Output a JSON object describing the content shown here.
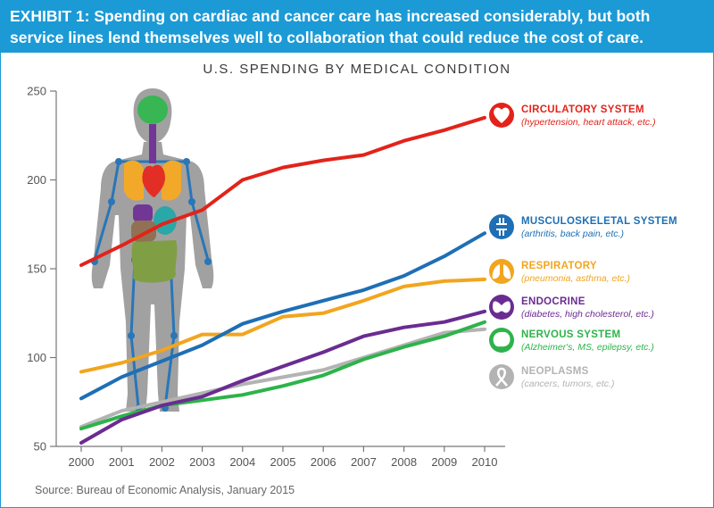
{
  "header": {
    "line1": "EXHIBIT 1: Spending on cardiac and cancer care has increased considerably, but both",
    "line2": "service lines lend themselves well to collaboration that could reduce the cost of care."
  },
  "source": "Source: Bureau of Economic Analysis, January 2015",
  "chart_data": {
    "type": "line",
    "title": "U.S. SPENDING BY MEDICAL CONDITION",
    "xlabel": "",
    "ylabel": "",
    "x": [
      "2000",
      "2001",
      "2002",
      "2003",
      "2004",
      "2005",
      "2006",
      "2007",
      "2008",
      "2009",
      "2010"
    ],
    "ylim": [
      50,
      250
    ],
    "yticks": [
      50,
      100,
      150,
      200,
      250
    ],
    "grid": false,
    "legend_position": "right",
    "series": [
      {
        "name": "CIRCULATORY SYSTEM",
        "description": "(hypertension, heart attack, etc.)",
        "color": "#e2231a",
        "icon": "heart-icon",
        "values": [
          152,
          163,
          175,
          183,
          200,
          207,
          211,
          214,
          222,
          228,
          235
        ]
      },
      {
        "name": "MUSCULOSKELETAL SYSTEM",
        "description": "(arthritis, back pain, etc.)",
        "color": "#1e6fb5",
        "icon": "knee-joint-icon",
        "values": [
          77,
          89,
          98,
          107,
          119,
          126,
          132,
          138,
          146,
          157,
          170
        ]
      },
      {
        "name": "RESPIRATORY",
        "description": "(pneumonia, asthma, etc.)",
        "color": "#f2a51e",
        "icon": "lungs-icon",
        "values": [
          92,
          97,
          104,
          113,
          113,
          123,
          125,
          132,
          140,
          143,
          144
        ]
      },
      {
        "name": "ENDOCRINE",
        "description": "(diabetes, high cholesterol, etc.)",
        "color": "#6a2c91",
        "icon": "thyroid-icon",
        "values": [
          52,
          65,
          73,
          78,
          87,
          95,
          103,
          112,
          117,
          120,
          126
        ]
      },
      {
        "name": "NERVOUS SYSTEM",
        "description": "(Alzheimer's, MS, epilepsy, etc.)",
        "color": "#2db34a",
        "icon": "brain-icon",
        "values": [
          60,
          67,
          73,
          76,
          79,
          84,
          90,
          99,
          106,
          112,
          120
        ]
      },
      {
        "name": "NEOPLASMS",
        "description": "(cancers, tumors, etc.)",
        "color": "#b3b3b3",
        "icon": "cancer-ribbon-icon",
        "values": [
          61,
          70,
          75,
          80,
          85,
          89,
          93,
          100,
          107,
          114,
          116
        ]
      }
    ]
  }
}
